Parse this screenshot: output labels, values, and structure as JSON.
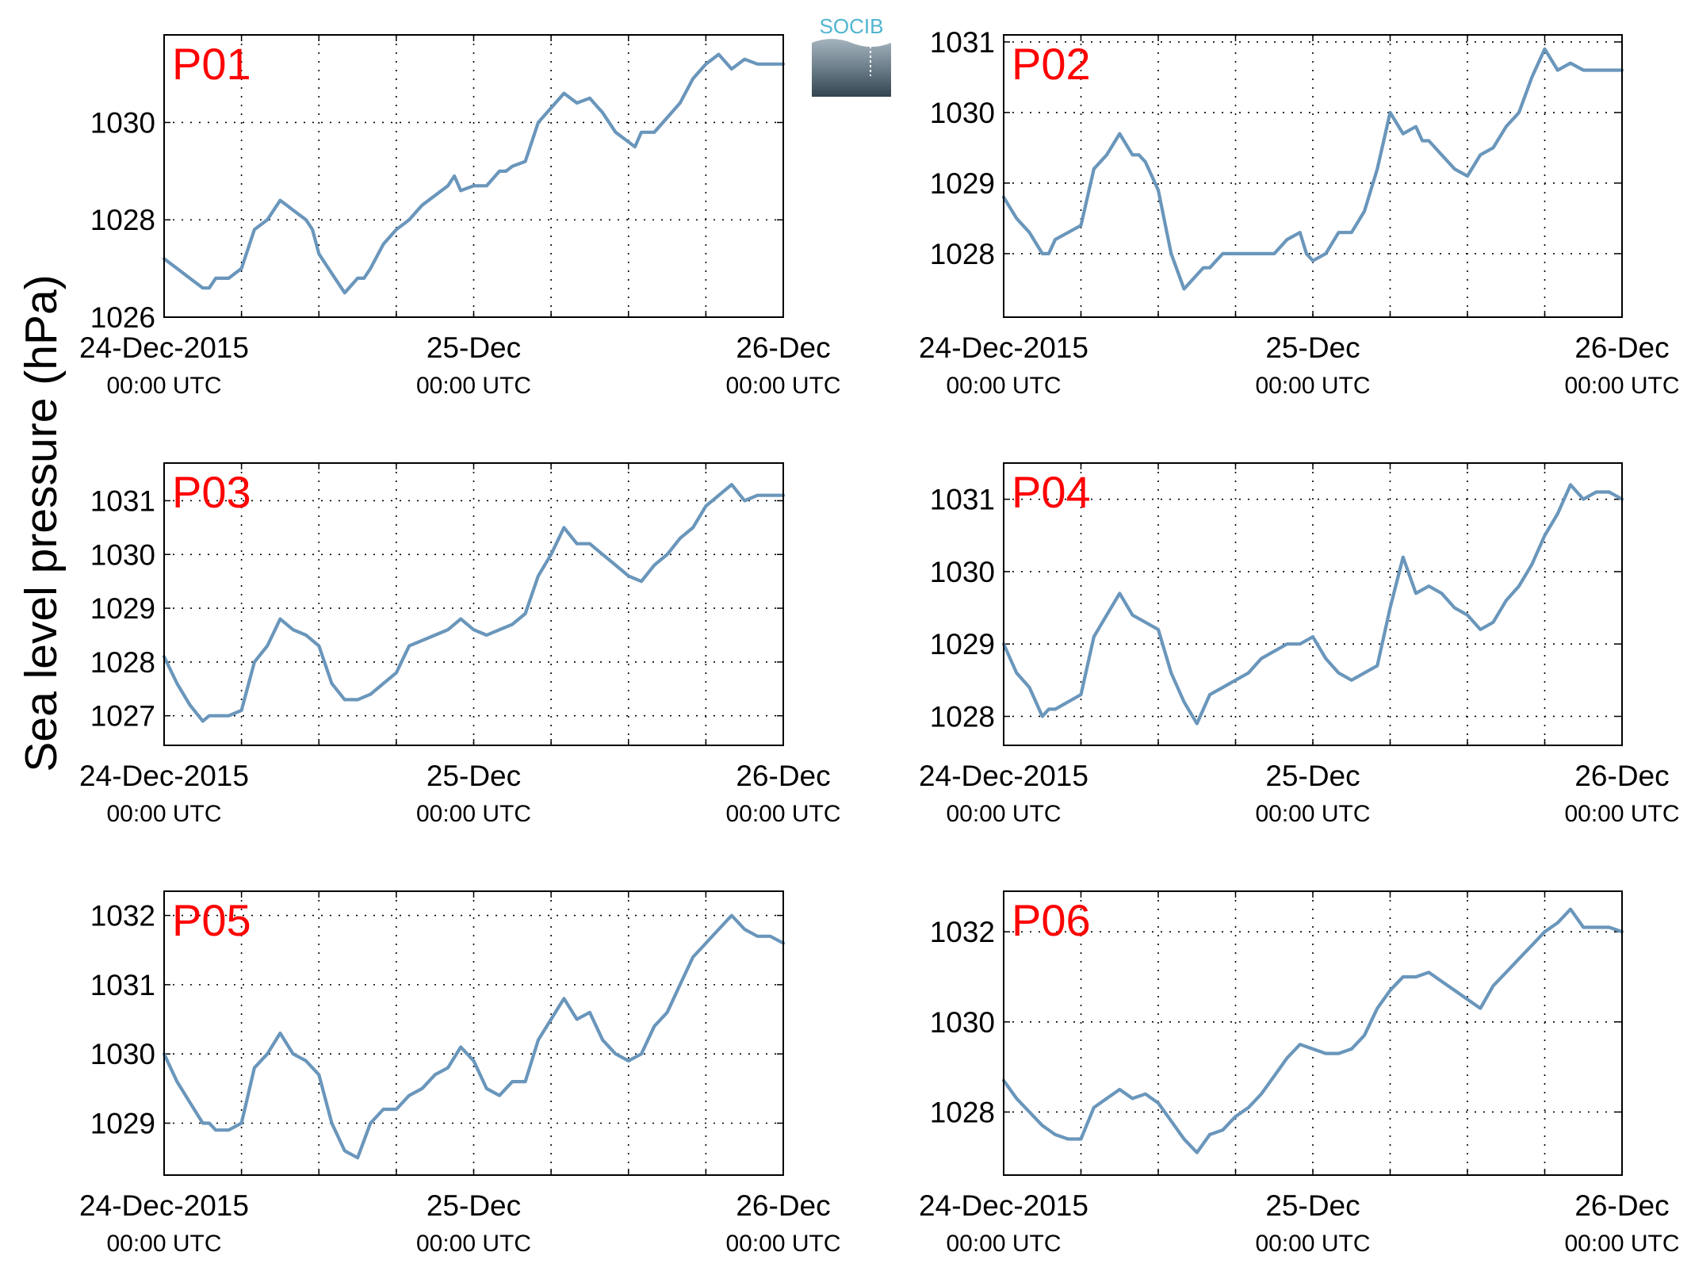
{
  "figure": {
    "ylabel": "Sea level pressure (hPa)",
    "logo_text": "SOCIB",
    "colors": {
      "line": "#6a96bb",
      "panel_label": "#ff0000",
      "grid": "#000000"
    }
  },
  "chart_data": [
    {
      "type": "line",
      "panel_label": "P01",
      "x_ticks": [
        {
          "x": 0,
          "line1": "24-Dec-2015",
          "line2": "00:00 UTC"
        },
        {
          "x": 24,
          "line1": "25-Dec",
          "line2": "00:00 UTC"
        },
        {
          "x": 48,
          "line1": "26-Dec",
          "line2": "00:00 UTC"
        }
      ],
      "xlim": [
        0,
        48
      ],
      "ylim": [
        1026,
        1031.8
      ],
      "y_ticks": [
        1026,
        1028,
        1030
      ],
      "grid": true,
      "x": [
        0,
        1,
        2,
        3,
        3.5,
        4,
        5,
        6,
        7,
        8,
        9,
        9.5,
        10,
        11,
        11.5,
        12,
        13,
        14,
        15,
        15.5,
        16,
        17,
        18,
        19,
        20,
        21,
        22,
        22.5,
        23,
        24,
        24.5,
        25,
        26,
        26.5,
        27,
        28,
        29,
        30,
        31,
        32,
        33,
        34,
        35,
        36,
        36.5,
        37,
        38,
        39,
        40,
        41,
        42,
        43,
        44,
        45,
        46,
        47,
        48
      ],
      "values": [
        1027.2,
        1027.0,
        1026.8,
        1026.6,
        1026.6,
        1026.8,
        1026.8,
        1027.0,
        1027.8,
        1028.0,
        1028.4,
        1028.3,
        1028.2,
        1028.0,
        1027.8,
        1027.3,
        1026.9,
        1026.5,
        1026.8,
        1026.8,
        1027.0,
        1027.5,
        1027.8,
        1028.0,
        1028.3,
        1028.5,
        1028.7,
        1028.9,
        1028.6,
        1028.7,
        1028.7,
        1028.7,
        1029.0,
        1029.0,
        1029.1,
        1029.2,
        1030.0,
        1030.3,
        1030.6,
        1030.4,
        1030.5,
        1030.2,
        1029.8,
        1029.6,
        1029.5,
        1029.8,
        1029.8,
        1030.1,
        1030.4,
        1030.9,
        1031.2,
        1031.4,
        1031.1,
        1031.3,
        1031.2,
        1031.2,
        1031.2
      ]
    },
    {
      "type": "line",
      "panel_label": "P02",
      "x_ticks": [
        {
          "x": 0,
          "line1": "24-Dec-2015",
          "line2": "00:00 UTC"
        },
        {
          "x": 24,
          "line1": "25-Dec",
          "line2": "00:00 UTC"
        },
        {
          "x": 48,
          "line1": "26-Dec",
          "line2": "00:00 UTC"
        }
      ],
      "xlim": [
        0,
        48
      ],
      "ylim": [
        1027.1,
        1031.1
      ],
      "y_ticks": [
        1028,
        1029,
        1030,
        1031
      ],
      "grid": true,
      "x": [
        0,
        1,
        2,
        3,
        3.5,
        4,
        5,
        6,
        7,
        8,
        9,
        10,
        10.5,
        11,
        12,
        13,
        14,
        15,
        15.5,
        16,
        17,
        18,
        19,
        20,
        21,
        22,
        23,
        23.5,
        24,
        25,
        26,
        27,
        28,
        29,
        30,
        31,
        32,
        32.5,
        33,
        34,
        35,
        36,
        37,
        38,
        39,
        40,
        41,
        42,
        43,
        44,
        45,
        46,
        47,
        48
      ],
      "values": [
        1028.8,
        1028.5,
        1028.3,
        1028.0,
        1028.0,
        1028.2,
        1028.3,
        1028.4,
        1029.2,
        1029.4,
        1029.7,
        1029.4,
        1029.4,
        1029.3,
        1028.9,
        1028.0,
        1027.5,
        1027.7,
        1027.8,
        1027.8,
        1028.0,
        1028.0,
        1028.0,
        1028.0,
        1028.0,
        1028.2,
        1028.3,
        1028.0,
        1027.9,
        1028.0,
        1028.3,
        1028.3,
        1028.6,
        1029.2,
        1030.0,
        1029.7,
        1029.8,
        1029.6,
        1029.6,
        1029.4,
        1029.2,
        1029.1,
        1029.4,
        1029.5,
        1029.8,
        1030.0,
        1030.5,
        1030.9,
        1030.6,
        1030.7,
        1030.6,
        1030.6,
        1030.6,
        1030.6
      ]
    },
    {
      "type": "line",
      "panel_label": "P03",
      "x_ticks": [
        {
          "x": 0,
          "line1": "24-Dec-2015",
          "line2": "00:00 UTC"
        },
        {
          "x": 24,
          "line1": "25-Dec",
          "line2": "00:00 UTC"
        },
        {
          "x": 48,
          "line1": "26-Dec",
          "line2": "00:00 UTC"
        }
      ],
      "xlim": [
        0,
        48
      ],
      "ylim": [
        1026.45,
        1031.7
      ],
      "y_ticks": [
        1027,
        1028,
        1029,
        1030,
        1031
      ],
      "grid": true,
      "x": [
        0,
        1,
        2,
        3,
        3.5,
        4,
        5,
        6,
        7,
        8,
        9,
        10,
        11,
        12,
        13,
        14,
        15,
        16,
        17,
        18,
        19,
        20,
        21,
        22,
        23,
        24,
        25,
        26,
        27,
        28,
        29,
        30,
        31,
        32,
        33,
        34,
        35,
        36,
        37,
        38,
        39,
        40,
        41,
        42,
        43,
        44,
        45,
        46,
        47,
        48
      ],
      "values": [
        1028.1,
        1027.6,
        1027.2,
        1026.9,
        1027.0,
        1027.0,
        1027.0,
        1027.1,
        1028.0,
        1028.3,
        1028.8,
        1028.6,
        1028.5,
        1028.3,
        1027.6,
        1027.3,
        1027.3,
        1027.4,
        1027.6,
        1027.8,
        1028.3,
        1028.4,
        1028.5,
        1028.6,
        1028.8,
        1028.6,
        1028.5,
        1028.6,
        1028.7,
        1028.9,
        1029.6,
        1030.0,
        1030.5,
        1030.2,
        1030.2,
        1030.0,
        1029.8,
        1029.6,
        1029.5,
        1029.8,
        1030.0,
        1030.3,
        1030.5,
        1030.9,
        1031.1,
        1031.3,
        1031.0,
        1031.1,
        1031.1,
        1031.1
      ]
    },
    {
      "type": "line",
      "panel_label": "P04",
      "x_ticks": [
        {
          "x": 0,
          "line1": "24-Dec-2015",
          "line2": "00:00 UTC"
        },
        {
          "x": 24,
          "line1": "25-Dec",
          "line2": "00:00 UTC"
        },
        {
          "x": 48,
          "line1": "26-Dec",
          "line2": "00:00 UTC"
        }
      ],
      "xlim": [
        0,
        48
      ],
      "ylim": [
        1027.6,
        1031.5
      ],
      "y_ticks": [
        1028,
        1029,
        1030,
        1031
      ],
      "grid": true,
      "x": [
        0,
        1,
        2,
        3,
        3.5,
        4,
        5,
        6,
        7,
        8,
        9,
        10,
        11,
        12,
        13,
        14,
        15,
        16,
        17,
        18,
        19,
        20,
        21,
        22,
        23,
        24,
        25,
        26,
        27,
        28,
        29,
        30,
        31,
        32,
        33,
        34,
        35,
        36,
        37,
        38,
        39,
        40,
        41,
        42,
        43,
        44,
        45,
        46,
        47,
        48
      ],
      "values": [
        1029.0,
        1028.6,
        1028.4,
        1028.0,
        1028.1,
        1028.1,
        1028.2,
        1028.3,
        1029.1,
        1029.4,
        1029.7,
        1029.4,
        1029.3,
        1029.2,
        1028.6,
        1028.2,
        1027.9,
        1028.3,
        1028.4,
        1028.5,
        1028.6,
        1028.8,
        1028.9,
        1029.0,
        1029.0,
        1029.1,
        1028.8,
        1028.6,
        1028.5,
        1028.6,
        1028.7,
        1029.5,
        1030.2,
        1029.7,
        1029.8,
        1029.7,
        1029.5,
        1029.4,
        1029.2,
        1029.3,
        1029.6,
        1029.8,
        1030.1,
        1030.5,
        1030.8,
        1031.2,
        1031.0,
        1031.1,
        1031.1,
        1031.0
      ]
    },
    {
      "type": "line",
      "panel_label": "P05",
      "x_ticks": [
        {
          "x": 0,
          "line1": "24-Dec-2015",
          "line2": "00:00 UTC"
        },
        {
          "x": 24,
          "line1": "25-Dec",
          "line2": "00:00 UTC"
        },
        {
          "x": 48,
          "line1": "26-Dec",
          "line2": "00:00 UTC"
        }
      ],
      "xlim": [
        0,
        48
      ],
      "ylim": [
        1028.25,
        1032.35
      ],
      "y_ticks": [
        1029,
        1030,
        1031,
        1032
      ],
      "grid": true,
      "x": [
        0,
        1,
        2,
        3,
        3.5,
        4,
        5,
        6,
        7,
        8,
        9,
        10,
        11,
        12,
        13,
        14,
        15,
        16,
        17,
        18,
        19,
        20,
        21,
        22,
        23,
        24,
        25,
        26,
        27,
        28,
        29,
        30,
        31,
        32,
        33,
        34,
        35,
        36,
        37,
        38,
        39,
        40,
        41,
        42,
        43,
        44,
        45,
        46,
        47,
        48
      ],
      "values": [
        1030.0,
        1029.6,
        1029.3,
        1029.0,
        1029.0,
        1028.9,
        1028.9,
        1029.0,
        1029.8,
        1030.0,
        1030.3,
        1030.0,
        1029.9,
        1029.7,
        1029.0,
        1028.6,
        1028.5,
        1029.0,
        1029.2,
        1029.2,
        1029.4,
        1029.5,
        1029.7,
        1029.8,
        1030.1,
        1029.9,
        1029.5,
        1029.4,
        1029.6,
        1029.6,
        1030.2,
        1030.5,
        1030.8,
        1030.5,
        1030.6,
        1030.2,
        1030.0,
        1029.9,
        1030.0,
        1030.4,
        1030.6,
        1031.0,
        1031.4,
        1031.6,
        1031.8,
        1032.0,
        1031.8,
        1031.7,
        1031.7,
        1031.6
      ]
    },
    {
      "type": "line",
      "panel_label": "P06",
      "x_ticks": [
        {
          "x": 0,
          "line1": "24-Dec-2015",
          "line2": "00:00 UTC"
        },
        {
          "x": 24,
          "line1": "25-Dec",
          "line2": "00:00 UTC"
        },
        {
          "x": 48,
          "line1": "26-Dec",
          "line2": "00:00 UTC"
        }
      ],
      "xlim": [
        0,
        48
      ],
      "ylim": [
        1026.6,
        1032.9
      ],
      "y_ticks": [
        1028,
        1030,
        1032
      ],
      "grid": true,
      "x": [
        0,
        1,
        2,
        3,
        3.5,
        4,
        5,
        6,
        7,
        8,
        9,
        10,
        11,
        12,
        13,
        14,
        15,
        16,
        17,
        18,
        19,
        20,
        21,
        22,
        23,
        24,
        25,
        26,
        27,
        28,
        29,
        30,
        31,
        32,
        33,
        34,
        35,
        36,
        37,
        38,
        39,
        40,
        41,
        42,
        43,
        44,
        45,
        46,
        47,
        48
      ],
      "values": [
        1028.7,
        1028.3,
        1028.0,
        1027.7,
        1027.6,
        1027.5,
        1027.4,
        1027.4,
        1028.1,
        1028.3,
        1028.5,
        1028.3,
        1028.4,
        1028.2,
        1027.8,
        1027.4,
        1027.1,
        1027.5,
        1027.6,
        1027.9,
        1028.1,
        1028.4,
        1028.8,
        1029.2,
        1029.5,
        1029.4,
        1029.3,
        1029.3,
        1029.4,
        1029.7,
        1030.3,
        1030.7,
        1031.0,
        1031.0,
        1031.1,
        1030.9,
        1030.7,
        1030.5,
        1030.3,
        1030.8,
        1031.1,
        1031.4,
        1031.7,
        1032.0,
        1032.2,
        1032.5,
        1032.1,
        1032.1,
        1032.1,
        1032.0
      ]
    }
  ]
}
